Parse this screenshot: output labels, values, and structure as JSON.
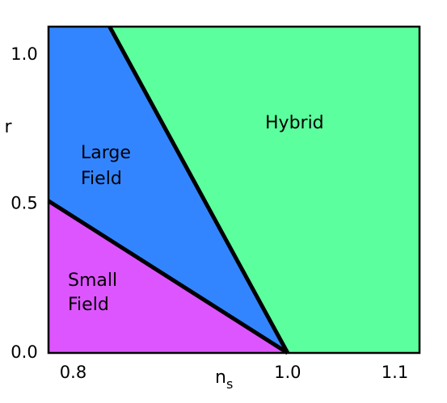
{
  "chart_data": {
    "type": "region",
    "x_label": "n",
    "x_label_sub": "s",
    "y_label": "r",
    "xlim": [
      0.777,
      1.123
    ],
    "ylim": [
      0,
      1.095
    ],
    "xticks": [
      0.8,
      {
        "value": 1.0,
        "label": "1.0"
      },
      1.1
    ],
    "yticks": [
      {
        "value": 0,
        "label": "0.0"
      },
      0.5,
      {
        "value": 1.0,
        "label": "1.0"
      }
    ],
    "regions": [
      {
        "label_lines": [
          "Small",
          "Field"
        ],
        "color": "#dd55ff",
        "x": [
          0.777,
          1.0,
          0.777
        ],
        "y": [
          0,
          0,
          0.51
        ]
      },
      {
        "label_lines": [
          "Large",
          "Field"
        ],
        "color": "#3385ff",
        "x": [
          0.777,
          1.0,
          0.834,
          0.777
        ],
        "y": [
          0.51,
          0,
          1.095,
          1.095
        ]
      },
      {
        "label_lines": [
          "Hybrid"
        ],
        "color": "#5cff9d",
        "x": [
          0.834,
          1.0,
          1.123,
          1.123
        ],
        "y": [
          1.095,
          0,
          0,
          1.095
        ]
      }
    ],
    "boundaries": [
      {
        "x": [
          0.777,
          1.0
        ],
        "y": [
          0.51,
          0
        ]
      },
      {
        "x": [
          0.834,
          1.0
        ],
        "y": [
          1.095,
          0
        ]
      }
    ],
    "boundary_color": "#000000"
  }
}
